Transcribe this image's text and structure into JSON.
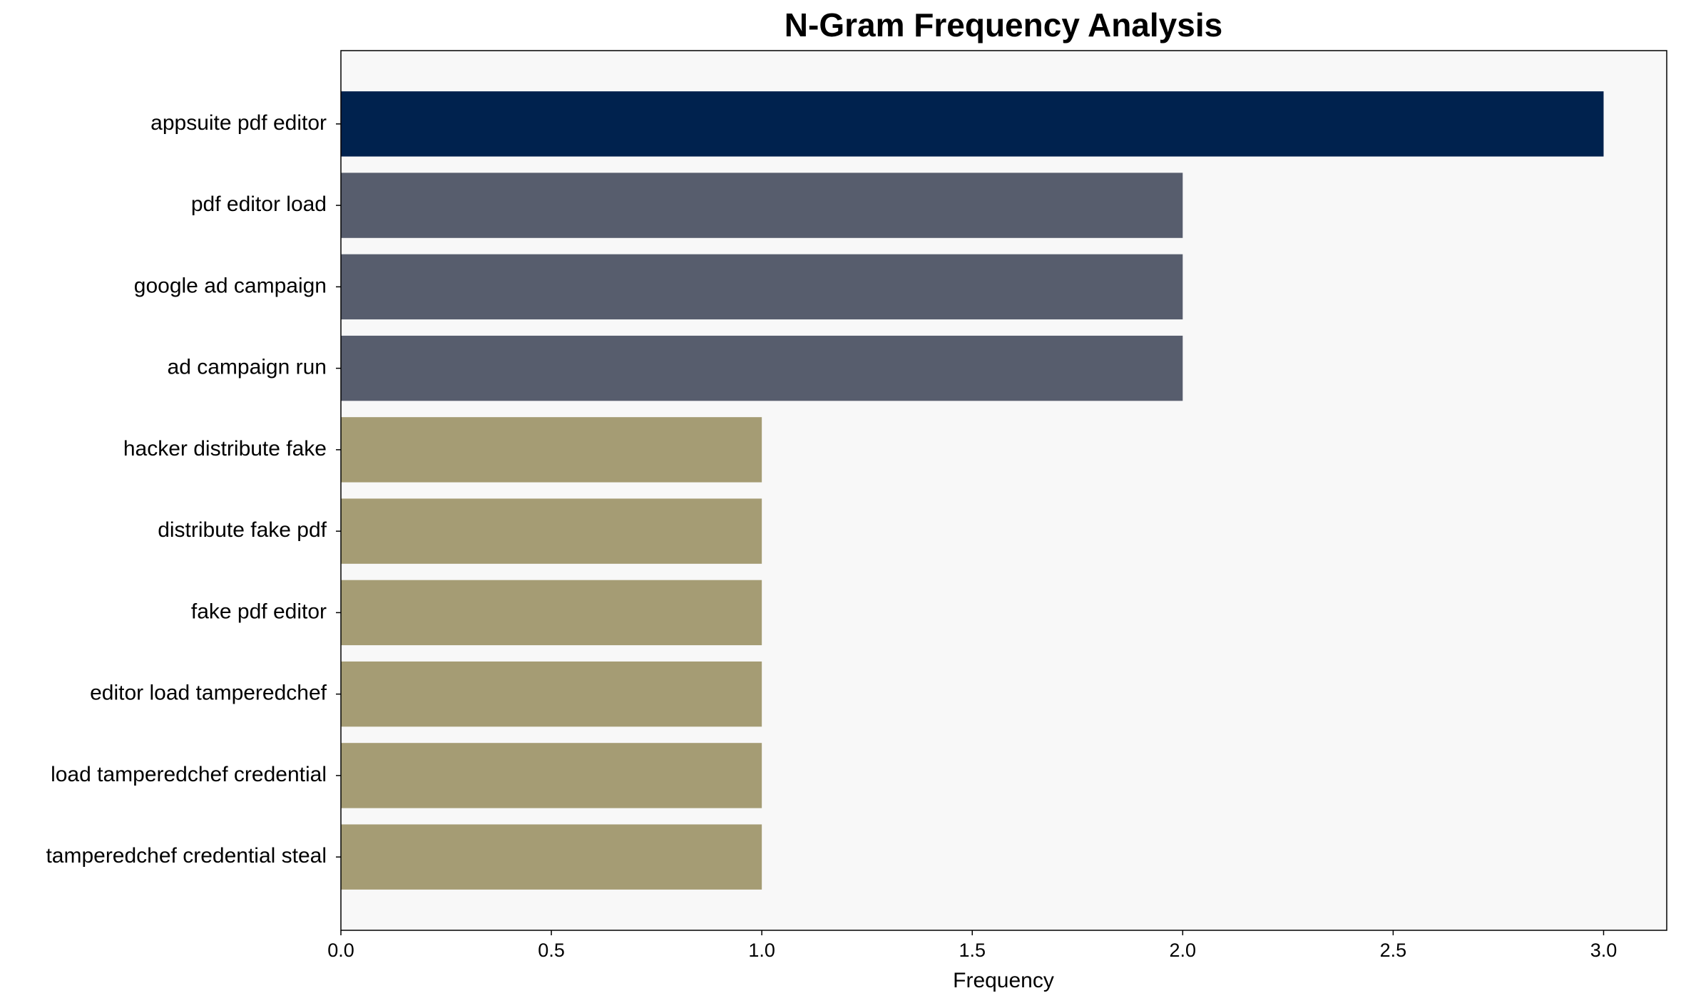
{
  "chart_data": {
    "type": "barh",
    "title": "N-Gram Frequency Analysis",
    "xlabel": "Frequency",
    "categories": [
      "appsuite pdf editor",
      "pdf editor load",
      "google ad campaign",
      "ad campaign run",
      "hacker distribute fake",
      "distribute fake pdf",
      "fake pdf editor",
      "editor load tamperedchef",
      "load tamperedchef credential",
      "tamperedchef credential steal"
    ],
    "values": [
      3,
      2,
      2,
      2,
      1,
      1,
      1,
      1,
      1,
      1
    ],
    "colors": [
      "#00224e",
      "#575d6d",
      "#575d6d",
      "#575d6d",
      "#a59c74",
      "#a59c74",
      "#a59c74",
      "#a59c74",
      "#a59c74",
      "#a59c74"
    ],
    "xlim": [
      0,
      3.15
    ],
    "xticks": [
      {
        "value": 0,
        "label": "0.0"
      },
      0.5,
      {
        "value": 1,
        "label": "1.0"
      },
      1.5,
      {
        "value": 2,
        "label": "2.0"
      },
      2.5,
      {
        "value": 3,
        "label": "3.0"
      }
    ],
    "plot_background": "#f8f8f8"
  }
}
